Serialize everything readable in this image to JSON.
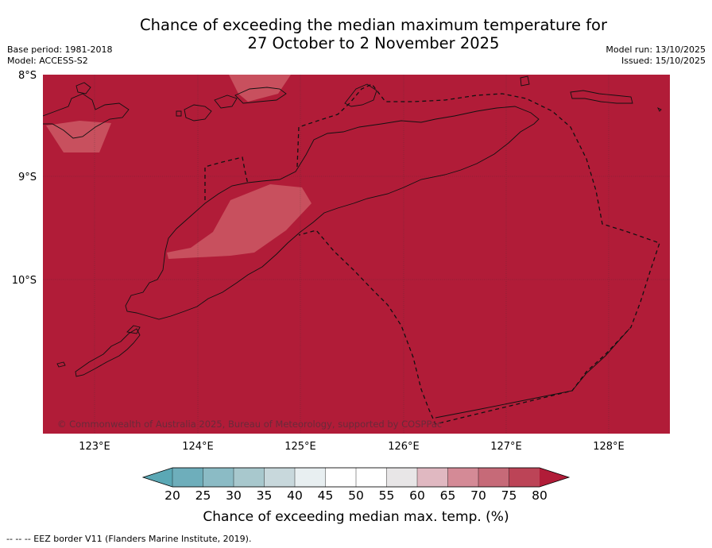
{
  "title": {
    "line1": "Chance of exceeding the median maximum temperature for",
    "line2": "27 October to 2 November 2025"
  },
  "meta_left": {
    "base_period": "Base period: 1981-2018",
    "model": "Model: ACCESS-S2"
  },
  "meta_right": {
    "model_run": "Model run: 13/10/2025",
    "issued": "Issued: 15/10/2025"
  },
  "map": {
    "lat_labels": [
      "8°S",
      "9°S",
      "10°S"
    ],
    "lon_labels": [
      "123°E",
      "124°E",
      "125°E",
      "126°E",
      "127°E",
      "128°E"
    ],
    "copyright": "© Commonwealth of Australia 2025, Bureau of Meteorology, supported by COSPPac",
    "colors": {
      "dominant": "#b11c38",
      "patch": "#c8505e",
      "land_line": "#111111"
    }
  },
  "colorbar": {
    "ticks": [
      "20",
      "25",
      "30",
      "35",
      "40",
      "45",
      "50",
      "55",
      "60",
      "65",
      "70",
      "75",
      "80"
    ],
    "colors": [
      "#5ba8b5",
      "#6eaebb",
      "#8bbbc5",
      "#a8c8cd",
      "#c8d8dc",
      "#e8eff1",
      "#ffffff",
      "#ffffff",
      "#e8e6e7",
      "#e0b8c1",
      "#d48a96",
      "#c66a78",
      "#bc4457",
      "#b11c38"
    ],
    "label": "Chance of exceeding median max. temp. (%)"
  },
  "legend_note": "--  --  -- EEZ border V11 (Flanders Marine Institute, 2019)."
}
